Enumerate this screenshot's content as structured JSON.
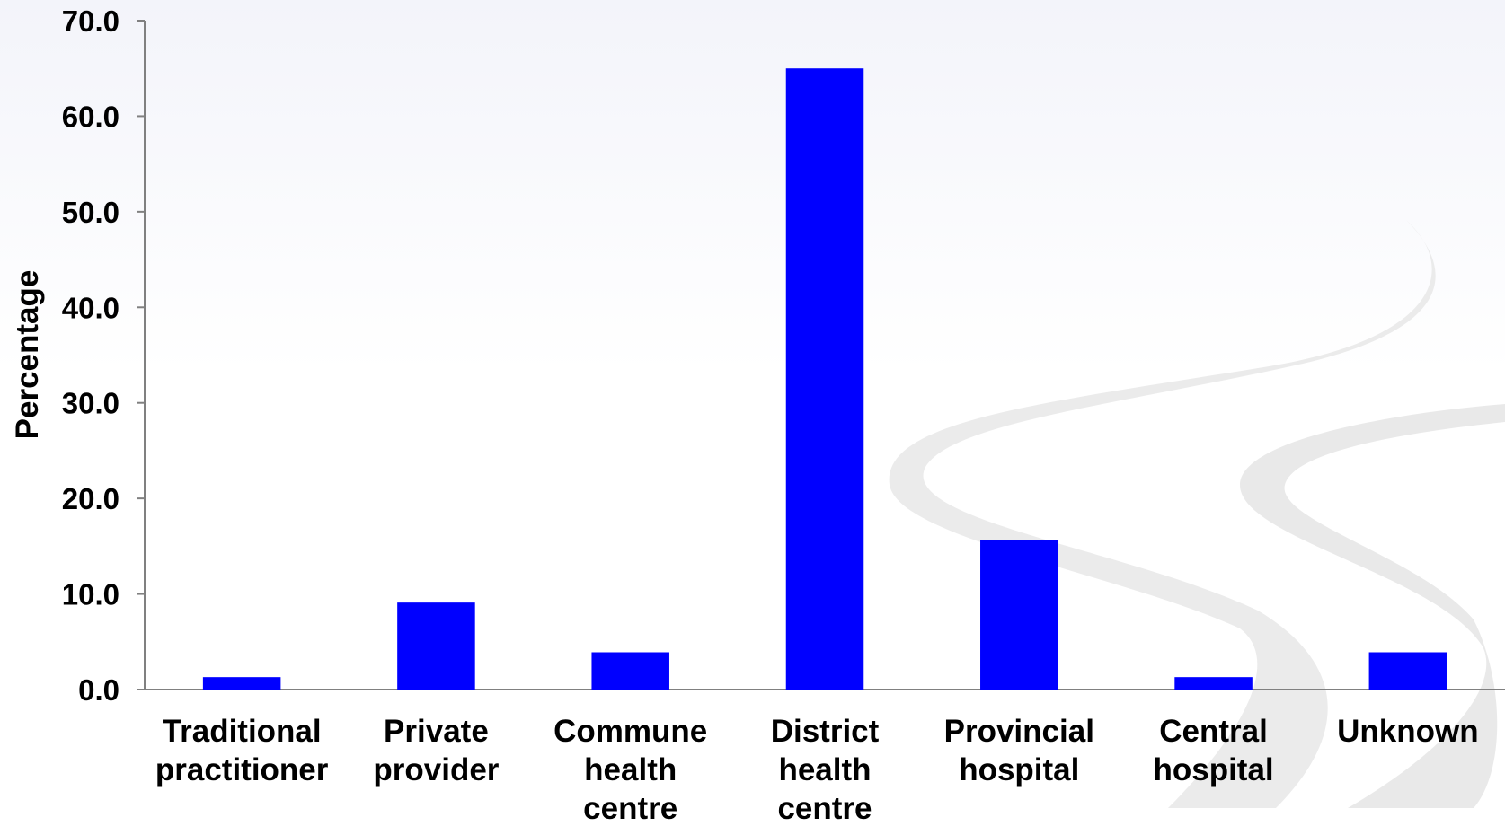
{
  "chart_data": {
    "type": "bar",
    "categories": [
      [
        "Traditional",
        "practitioner"
      ],
      [
        "Private",
        "provider"
      ],
      [
        "Commune",
        "health",
        "centre"
      ],
      [
        "District",
        "health",
        "centre"
      ],
      [
        "Provincial",
        "hospital"
      ],
      [
        "Central",
        "hospital"
      ],
      [
        "Unknown"
      ]
    ],
    "values": [
      1.3,
      9.1,
      3.9,
      65.0,
      15.6,
      1.3,
      3.9
    ],
    "ylabel": "Percentage",
    "ylim": [
      0,
      70
    ],
    "yticks": [
      "0.0",
      "10.0",
      "20.0",
      "30.0",
      "40.0",
      "50.0",
      "60.0",
      "70.0"
    ],
    "bar_color": "#0000ff",
    "grid": false,
    "legend": "none"
  }
}
